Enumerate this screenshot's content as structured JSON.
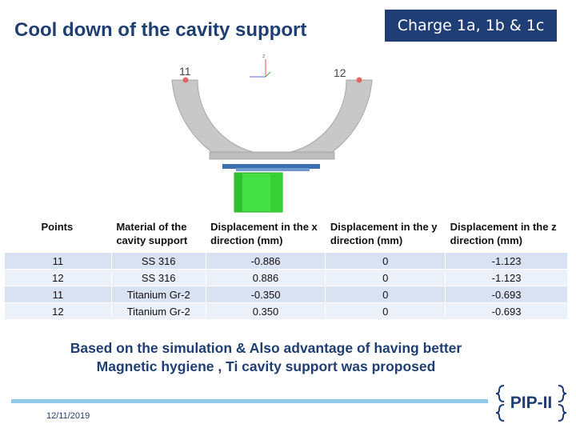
{
  "slide": {
    "title": "Cool down of the cavity support",
    "charge_label": "Charge 1a, 1b & 1c",
    "conclusion_line1": "Based on the simulation & Also advantage of having better",
    "conclusion_line2": "Magnetic hygiene , Ti cavity support was proposed",
    "date": "12/11/2019",
    "logo_text": "PIP-II"
  },
  "diagram": {
    "point_left": "11",
    "point_right": "12",
    "colors": {
      "support": "#c8c8c8",
      "cylinder": "#44e044",
      "plate": "#3b6fb0",
      "point": "#e06666"
    }
  },
  "table": {
    "headers": [
      "Points",
      "Material of the cavity support",
      "Displacement in the x direction (mm)",
      "Displacement in the y direction (mm)",
      "Displacement in the z direction (mm)"
    ],
    "rows": [
      [
        "11",
        "SS 316",
        "-0.886",
        "0",
        "-1.123"
      ],
      [
        "12",
        "SS 316",
        "0.886",
        "0",
        "-1.123"
      ],
      [
        "11",
        "Titanium Gr-2",
        "-0.350",
        "0",
        "-0.693"
      ],
      [
        "12",
        "Titanium Gr-2",
        "0.350",
        "0",
        "-0.693"
      ]
    ]
  }
}
